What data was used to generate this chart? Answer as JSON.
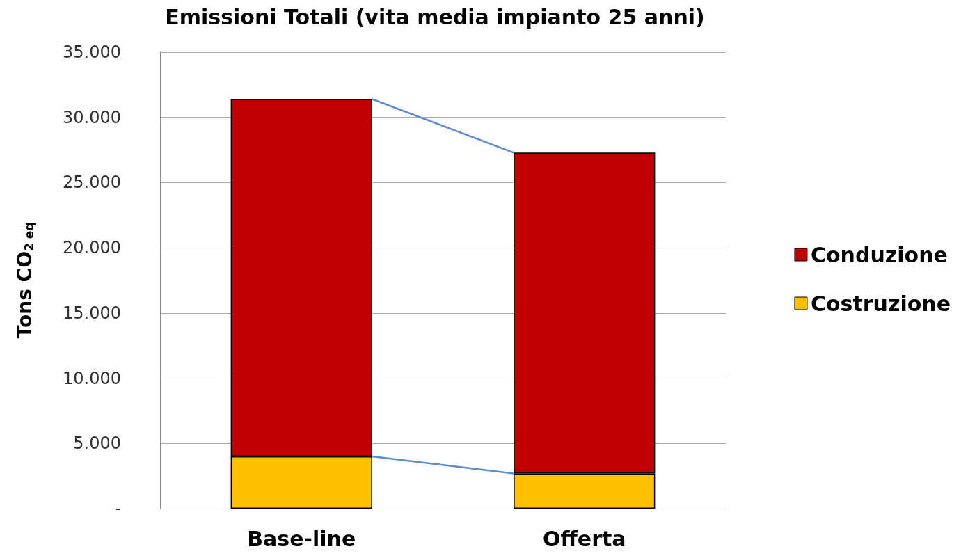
{
  "chart_data": {
    "type": "bar",
    "stacked": true,
    "title": "Emissioni Totali (vita media impianto 25 anni)",
    "ylabel": "Tons CO$_{2 eq}$",
    "categories": [
      "Base-line",
      "Offerta"
    ],
    "series": [
      {
        "name": "Costruzione",
        "color": "#ffc000",
        "values": [
          4000,
          2700
        ]
      },
      {
        "name": "Conduzione",
        "color": "#c00000",
        "values": [
          27400,
          24600
        ]
      }
    ],
    "ylim": [
      0,
      35000
    ],
    "yticks": [
      {
        "value": 0,
        "label": "-"
      },
      {
        "value": 5000,
        "label": "5.000"
      },
      {
        "value": 10000,
        "label": "10.000"
      },
      {
        "value": 15000,
        "label": "15.000"
      },
      {
        "value": 20000,
        "label": "20.000"
      },
      {
        "value": 25000,
        "label": "25.000"
      },
      {
        "value": 30000,
        "label": "30.000"
      },
      {
        "value": 35000,
        "label": "35.000"
      }
    ],
    "grid": "y",
    "legend": "right"
  }
}
